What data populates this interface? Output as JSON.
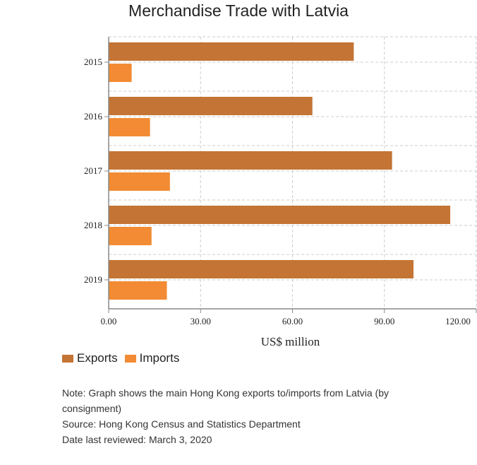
{
  "chart_data": {
    "type": "bar",
    "orientation": "horizontal",
    "title": "Merchandise Trade with Latvia",
    "xlabel": "US$ million",
    "categories": [
      "2015",
      "2016",
      "2017",
      "2018",
      "2019"
    ],
    "series": [
      {
        "name": "Exports",
        "color": "#c47434",
        "values": [
          80.0,
          66.5,
          92.5,
          111.5,
          99.5
        ]
      },
      {
        "name": "Imports",
        "color": "#f28b33",
        "values": [
          7.5,
          13.5,
          20.0,
          14.0,
          19.0
        ]
      }
    ],
    "xlim": [
      0,
      120
    ],
    "xticks": [
      "0.00",
      "30.00",
      "60.00",
      "90.00",
      "120.00"
    ],
    "grid": true,
    "legend_position": "bottom-left"
  },
  "notes": {
    "note": "Note: Graph shows the main Hong Kong exports to/imports from Latvia (by consignment)",
    "source": "Source: Hong Kong Census and Statistics Department",
    "reviewed": "Date last reviewed: March 3, 2020"
  }
}
